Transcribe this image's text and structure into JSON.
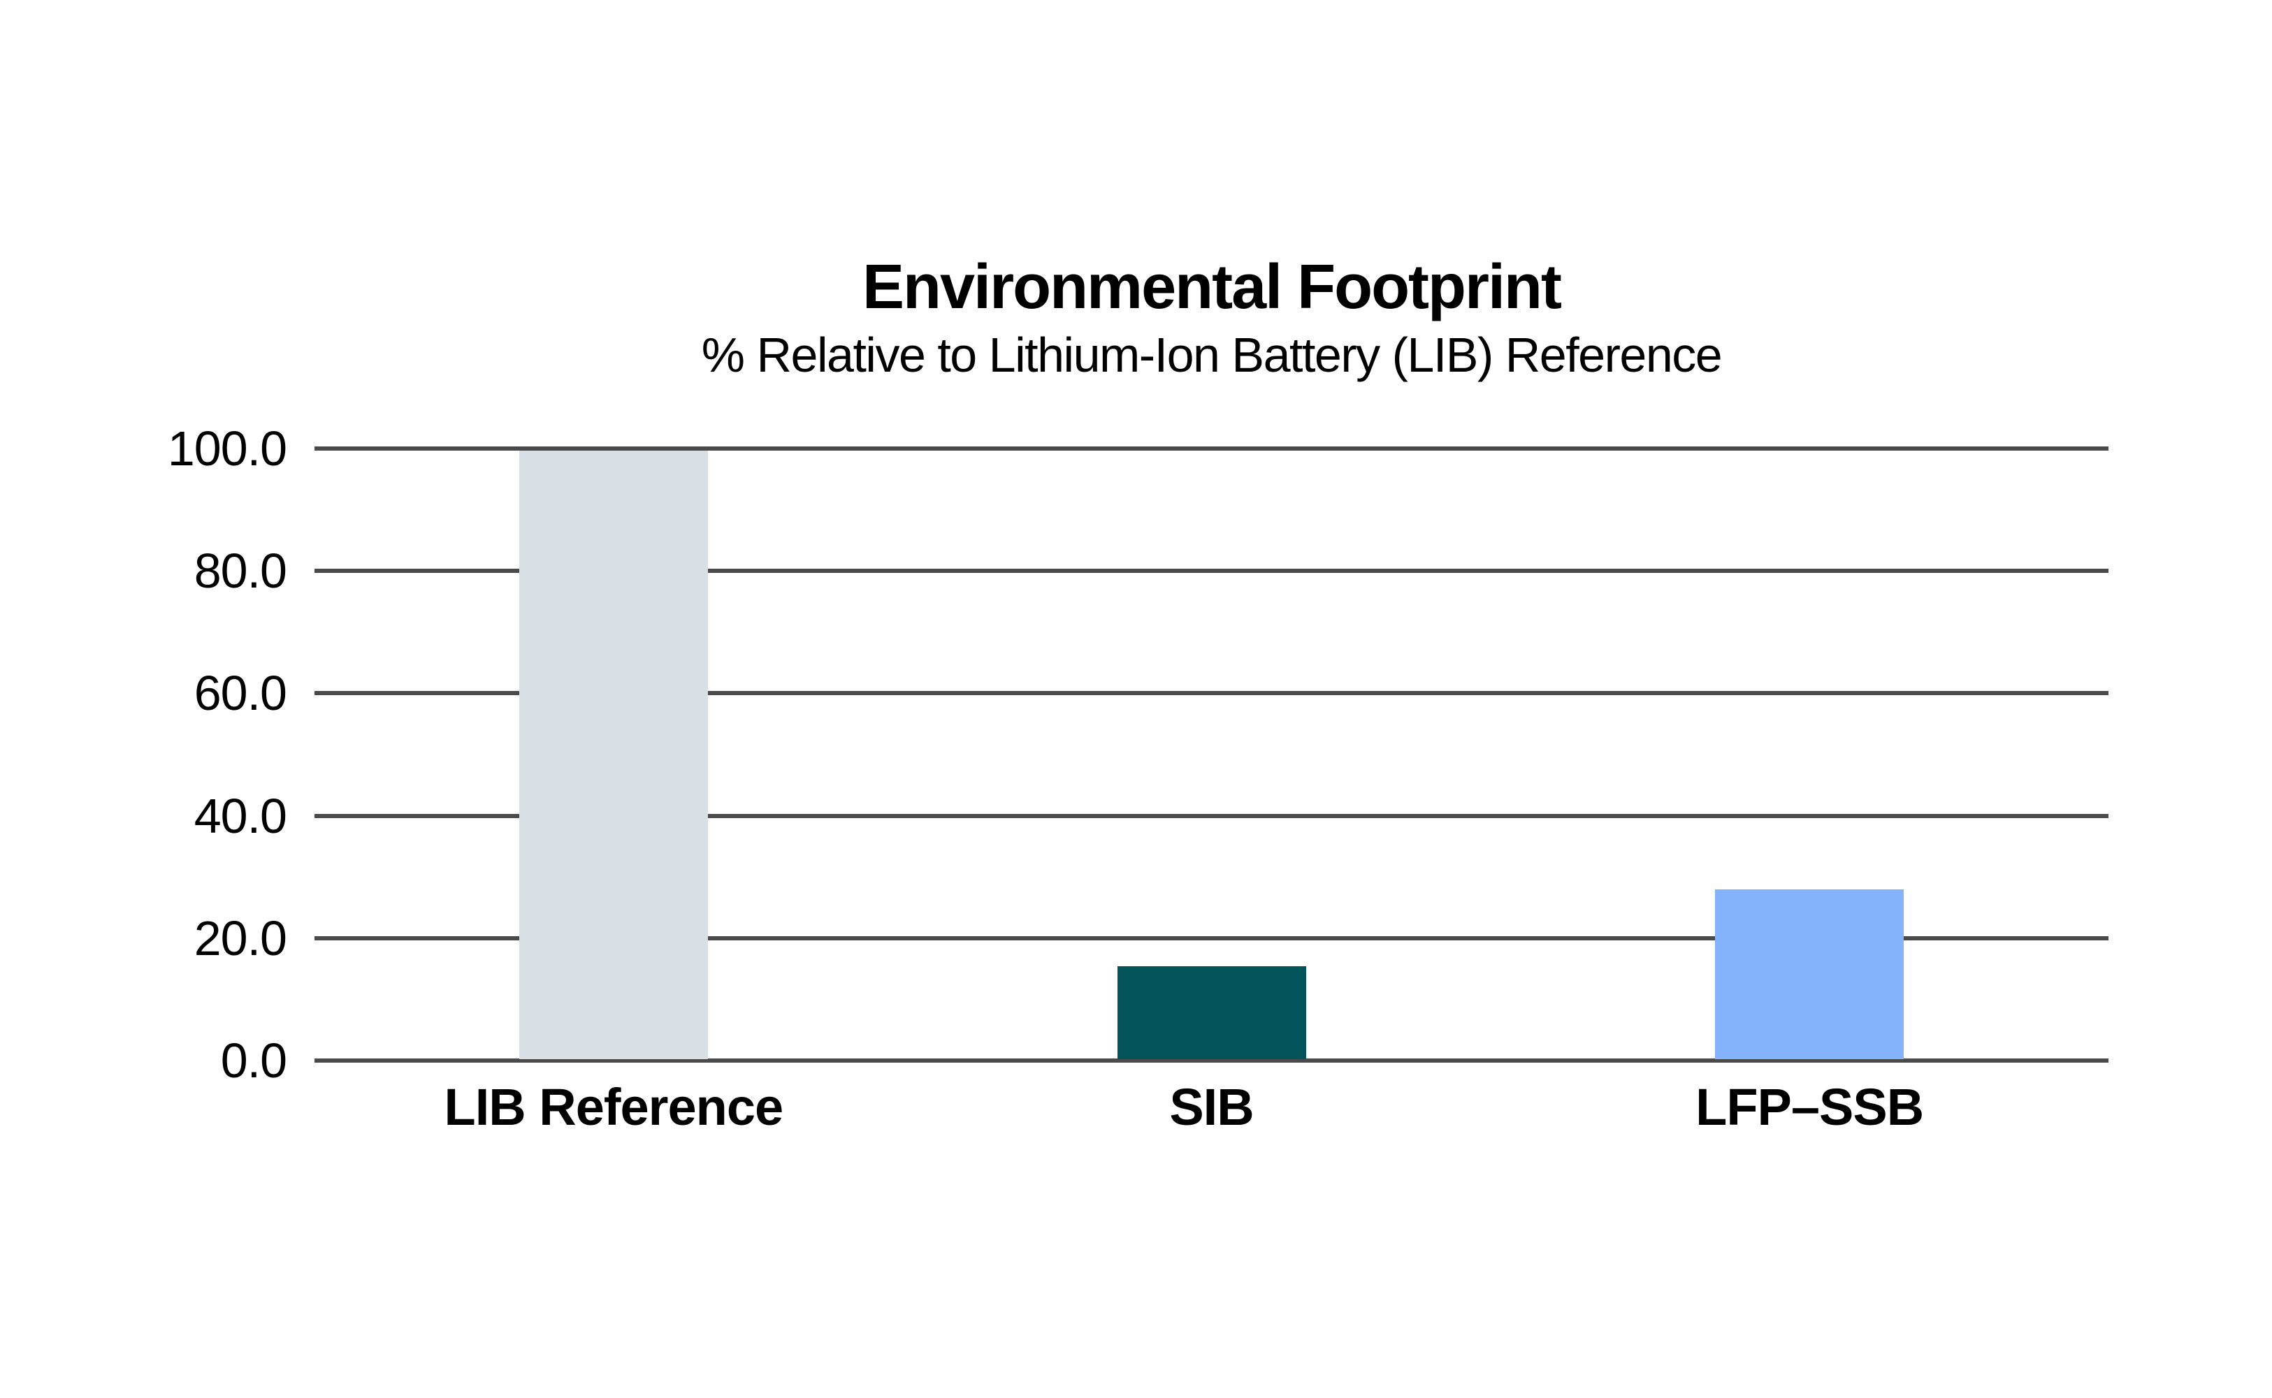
{
  "chart_data": {
    "type": "bar",
    "title": "Environmental Footprint",
    "subtitle": "% Relative to Lithium-Ion Battery (LIB) Reference",
    "categories": [
      "LIB Reference",
      "SIB",
      "LFP–SSB"
    ],
    "values": [
      100.0,
      15.3,
      27.9
    ],
    "bar_colors": [
      "#d8e0e5",
      "#02535a",
      "#84b3fb"
    ],
    "xlabel": "",
    "ylabel": "",
    "ylim": [
      0,
      100
    ],
    "yticks": [
      0,
      20,
      40,
      60,
      80,
      100
    ],
    "ytick_labels": [
      "0.0",
      "20.0",
      "40.0",
      "60.0",
      "80.0",
      "100.0"
    ],
    "grid": "horizontal",
    "gridline_color": "#4a4a4a",
    "text_color": "#000000",
    "background_color": "#ffffff",
    "legend": "none"
  }
}
